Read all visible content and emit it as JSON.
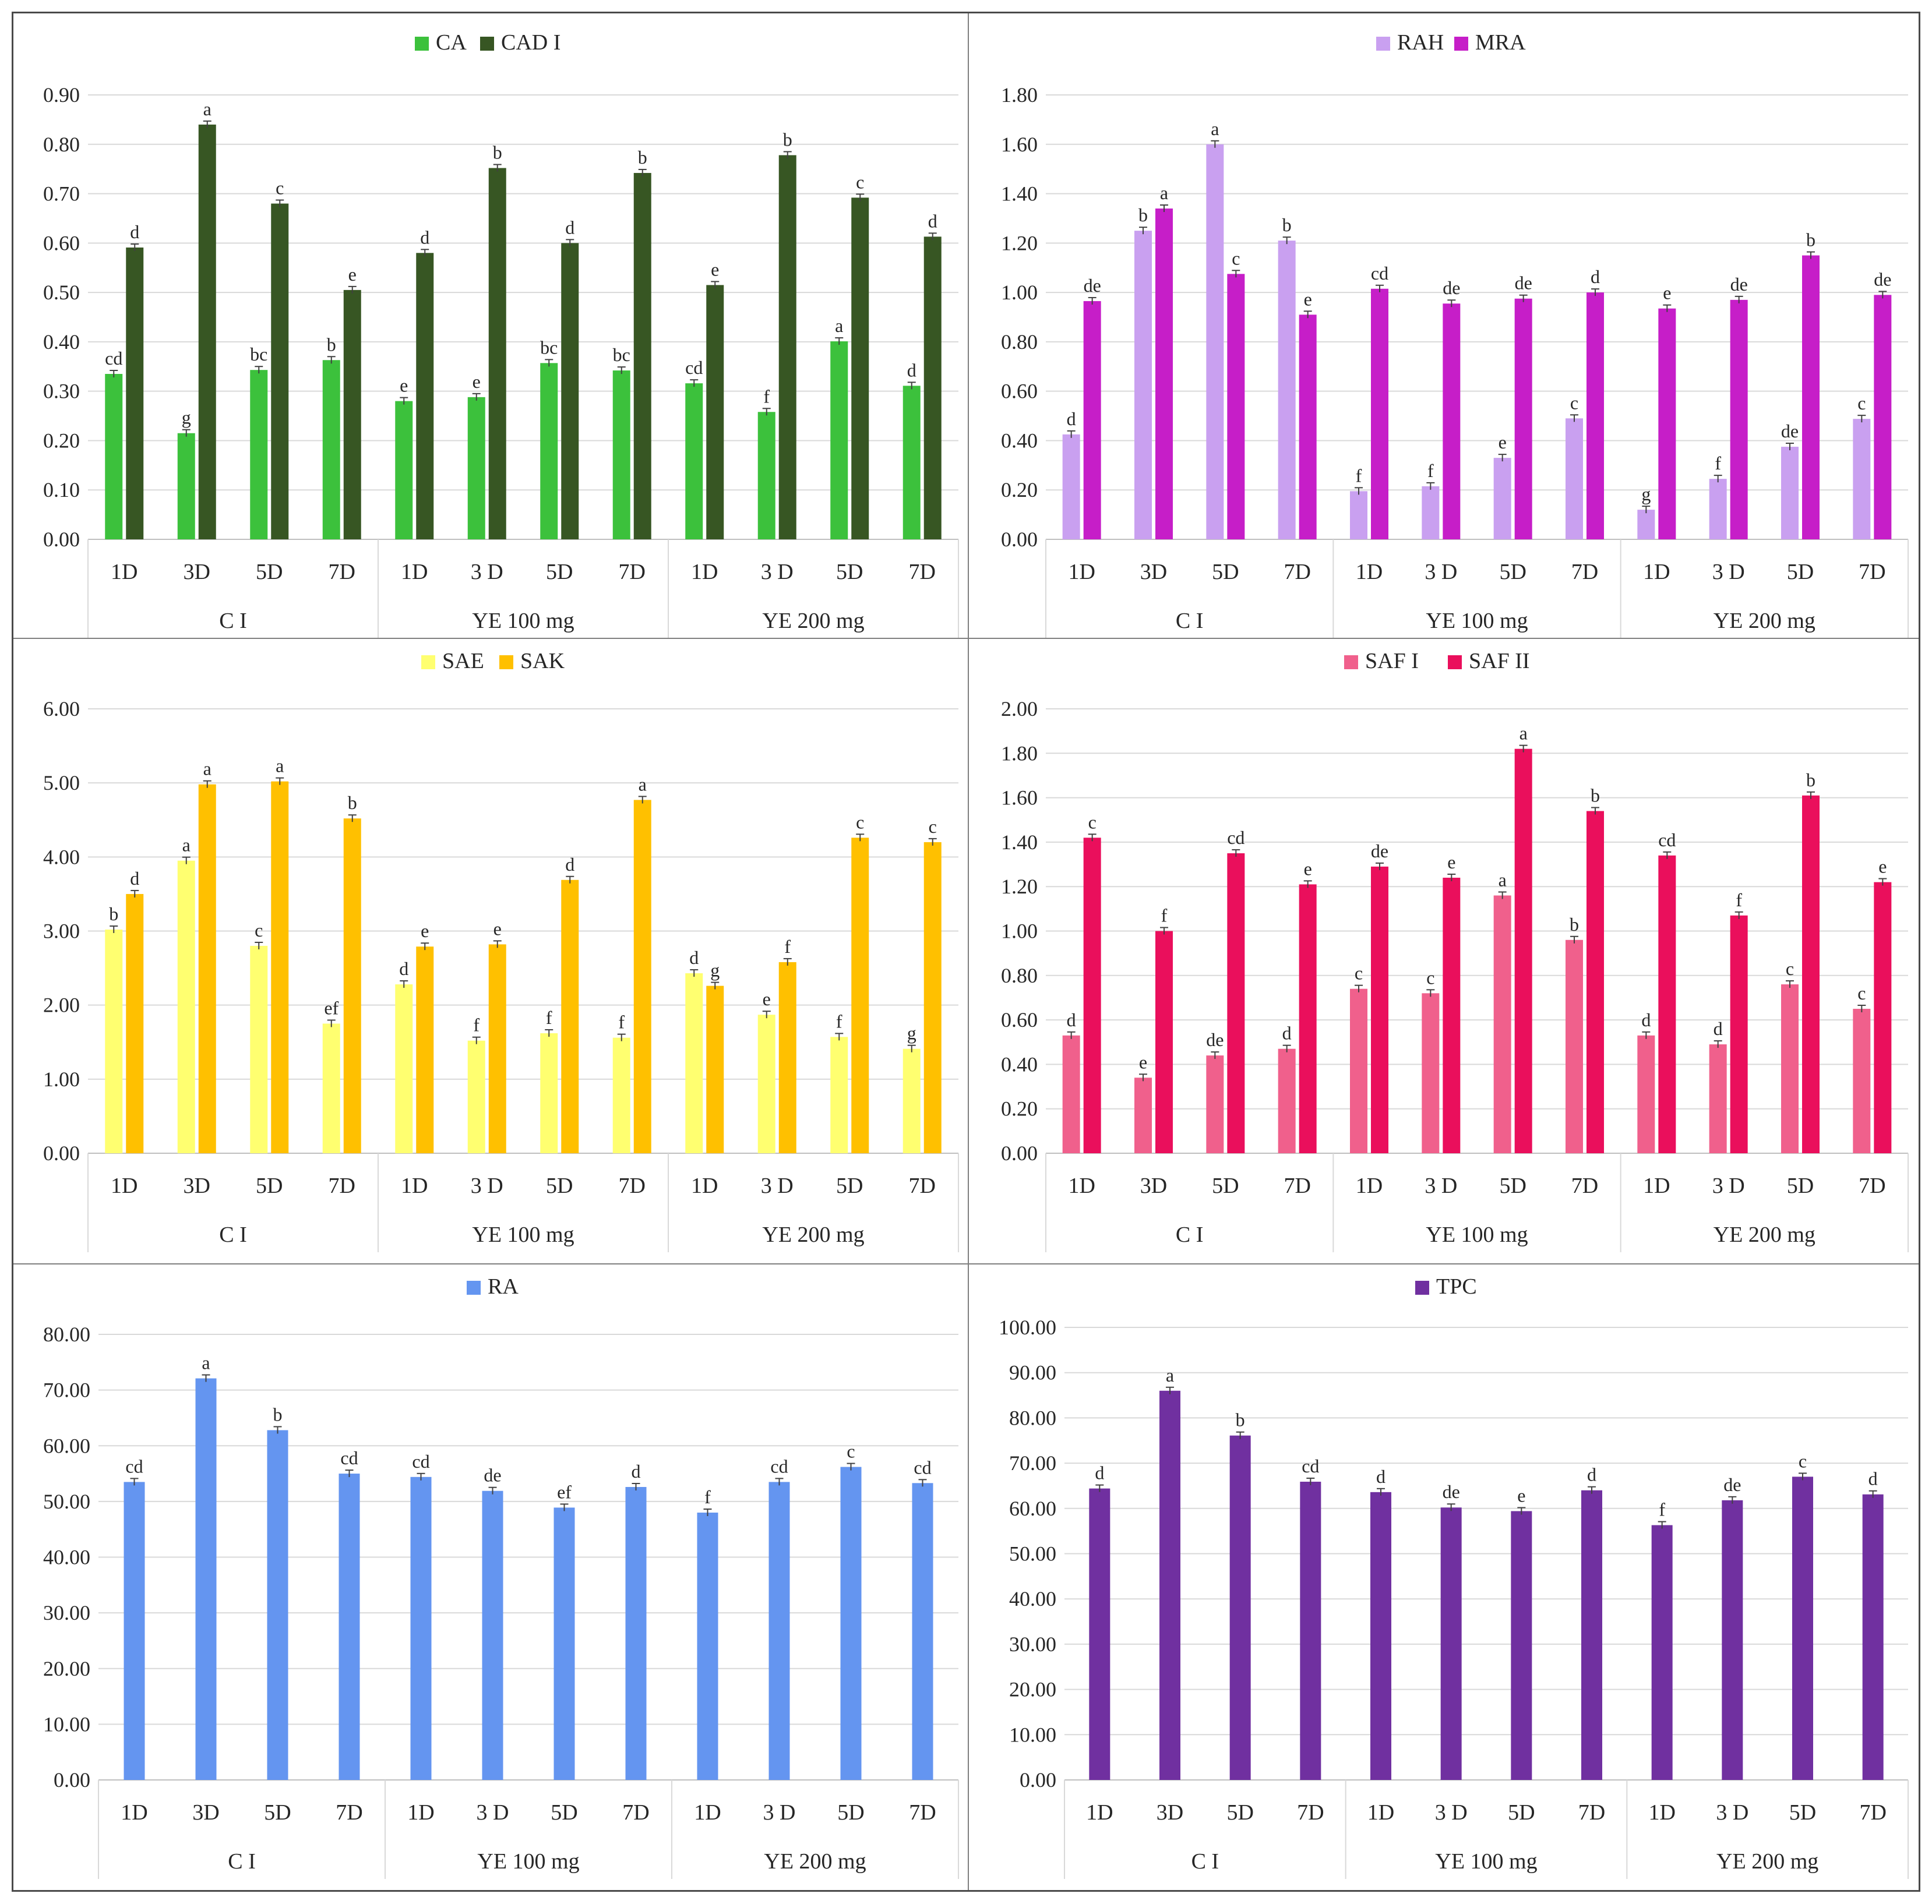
{
  "chart_data": [
    {
      "type": "bar",
      "title": "",
      "xlabel": "",
      "ylabel": "",
      "ylim": [
        0,
        0.9
      ],
      "ystep": 0.1,
      "decimals": 2,
      "grid": true,
      "legend_position": "top-center",
      "categories": [
        "1D",
        "3D",
        "5D",
        "7D",
        "1D",
        "3 D",
        "5D",
        "7D",
        "1D",
        "3 D",
        "5D",
        "7D"
      ],
      "groups": [
        "C I",
        "YE 100 mg",
        "YE 200 mg"
      ],
      "series": [
        {
          "name": "CA",
          "color": "#3cc13c",
          "values": [
            0.335,
            0.215,
            0.343,
            0.363,
            0.28,
            0.288,
            0.357,
            0.342,
            0.316,
            0.258,
            0.401,
            0.311
          ],
          "labels": [
            "cd",
            "g",
            "bc",
            "b",
            "e",
            "e",
            "bc",
            "bc",
            "cd",
            "f",
            "a",
            "d"
          ]
        },
        {
          "name": "CAD I",
          "color": "#375623",
          "values": [
            0.591,
            0.84,
            0.68,
            0.505,
            0.58,
            0.752,
            0.6,
            0.742,
            0.515,
            0.778,
            0.692,
            0.613
          ],
          "labels": [
            "d",
            "a",
            "c",
            "e",
            "d",
            "b",
            "d",
            "b",
            "e",
            "b",
            "c",
            "d"
          ]
        }
      ]
    },
    {
      "type": "bar",
      "title": "",
      "xlabel": "",
      "ylabel": "",
      "ylim": [
        0,
        1.8
      ],
      "ystep": 0.2,
      "decimals": 2,
      "grid": true,
      "legend_position": "top-center",
      "categories": [
        "1D",
        "3D",
        "5D",
        "7D",
        "1D",
        "3 D",
        "5D",
        "7D",
        "1D",
        "3 D",
        "5D",
        "7D"
      ],
      "groups": [
        "C I",
        "YE 100 mg",
        "YE 200 mg"
      ],
      "series": [
        {
          "name": "RAH",
          "color": "#c9a0f0",
          "values": [
            0.425,
            1.25,
            1.6,
            1.21,
            0.195,
            0.215,
            0.33,
            0.49,
            0.12,
            0.245,
            0.375,
            0.488
          ],
          "labels": [
            "d",
            "b",
            "a",
            "b",
            "f",
            "f",
            "e",
            "c",
            "g",
            "f",
            "de",
            "c"
          ]
        },
        {
          "name": "MRA",
          "color": "#c61ec8",
          "values": [
            0.965,
            1.34,
            1.075,
            0.91,
            1.015,
            0.955,
            0.975,
            1.0,
            0.935,
            0.97,
            1.15,
            0.99
          ],
          "labels": [
            "de",
            "a",
            "c",
            "e",
            "cd",
            "de",
            "de",
            "d",
            "e",
            "de",
            "b",
            "de"
          ]
        }
      ]
    },
    {
      "type": "bar",
      "title": "",
      "xlabel": "",
      "ylabel": "",
      "ylim": [
        0,
        6.0
      ],
      "ystep": 1.0,
      "decimals": 2,
      "grid": true,
      "legend_position": "top-center",
      "categories": [
        "1D",
        "3D",
        "5D",
        "7D",
        "1D",
        "3 D",
        "5D",
        "7D",
        "1D",
        "3 D",
        "5D",
        "7D"
      ],
      "groups": [
        "C I",
        "YE 100 mg",
        "YE 200 mg"
      ],
      "series": [
        {
          "name": "SAE",
          "color": "#ffff70",
          "values": [
            3.02,
            3.95,
            2.8,
            1.75,
            2.28,
            1.52,
            1.62,
            1.56,
            2.43,
            1.87,
            1.57,
            1.41
          ],
          "labels": [
            "b",
            "a",
            "c",
            "ef",
            "d",
            "f",
            "f",
            "f",
            "d",
            "e",
            "f",
            "g"
          ]
        },
        {
          "name": "SAK",
          "color": "#ffc000",
          "values": [
            3.5,
            4.98,
            5.02,
            4.52,
            2.79,
            2.82,
            3.69,
            4.77,
            2.26,
            2.58,
            4.26,
            4.2
          ],
          "labels": [
            "d",
            "a",
            "a",
            "b",
            "e",
            "e",
            "d",
            "a",
            "g",
            "f",
            "c",
            "c"
          ]
        }
      ]
    },
    {
      "type": "bar",
      "title": "",
      "xlabel": "",
      "ylabel": "",
      "ylim": [
        0,
        2.0
      ],
      "ystep": 0.2,
      "decimals": 2,
      "grid": true,
      "legend_position": "top-center",
      "categories": [
        "1D",
        "3D",
        "5D",
        "7D",
        "1D",
        "3 D",
        "5D",
        "7D",
        "1D",
        "3 D",
        "5D",
        "7D"
      ],
      "groups": [
        "C I",
        "YE 100 mg",
        "YE 200 mg"
      ],
      "series": [
        {
          "name": "SAF I",
          "color": "#f0608c",
          "values": [
            0.53,
            0.34,
            0.44,
            0.47,
            0.74,
            0.72,
            1.16,
            0.96,
            0.53,
            0.49,
            0.76,
            0.65
          ],
          "labels": [
            "d",
            "e",
            "de",
            "d",
            "c",
            "c",
            "a",
            "b",
            "d",
            "d",
            "c",
            "c"
          ]
        },
        {
          "name": "SAF II",
          "color": "#ea0f5c",
          "values": [
            1.42,
            1.0,
            1.35,
            1.21,
            1.29,
            1.24,
            1.82,
            1.54,
            1.34,
            1.07,
            1.61,
            1.22
          ],
          "labels": [
            "c",
            "f",
            "cd",
            "e",
            "de",
            "e",
            "a",
            "b",
            "cd",
            "f",
            "b",
            "e"
          ]
        }
      ]
    },
    {
      "type": "bar",
      "title": "",
      "xlabel": "",
      "ylabel": "",
      "ylim": [
        0,
        80
      ],
      "ystep": 10,
      "decimals": 2,
      "grid": true,
      "legend_position": "top-center",
      "categories": [
        "1D",
        "3D",
        "5D",
        "7D",
        "1D",
        "3 D",
        "5D",
        "7D",
        "1D",
        "3 D",
        "5D",
        "7D"
      ],
      "groups": [
        "C I",
        "YE 100 mg",
        "YE 200 mg"
      ],
      "series": [
        {
          "name": "RA",
          "color": "#6495f0",
          "values": [
            53.5,
            72.1,
            62.8,
            55.0,
            54.4,
            51.9,
            48.9,
            52.6,
            48.0,
            53.5,
            56.2,
            53.3
          ],
          "labels": [
            "cd",
            "a",
            "b",
            "cd",
            "cd",
            "de",
            "ef",
            "d",
            "f",
            "cd",
            "c",
            "cd"
          ]
        }
      ]
    },
    {
      "type": "bar",
      "title": "",
      "xlabel": "",
      "ylabel": "",
      "ylim": [
        0,
        100
      ],
      "ystep": 10,
      "decimals": 2,
      "grid": true,
      "legend_position": "top-center",
      "categories": [
        "1D",
        "3D",
        "5D",
        "7D",
        "1D",
        "3 D",
        "5D",
        "7D",
        "1D",
        "3 D",
        "5D",
        "7D"
      ],
      "groups": [
        "C I",
        "YE 100 mg",
        "YE 200 mg"
      ],
      "series": [
        {
          "name": "TPC",
          "color": "#7030a0",
          "values": [
            64.4,
            86.0,
            76.1,
            65.9,
            63.6,
            60.2,
            59.4,
            64.0,
            56.3,
            61.8,
            67.0,
            63.1
          ],
          "labels": [
            "d",
            "a",
            "b",
            "cd",
            "d",
            "de",
            "e",
            "d",
            "f",
            "de",
            "c",
            "d"
          ]
        }
      ]
    }
  ]
}
